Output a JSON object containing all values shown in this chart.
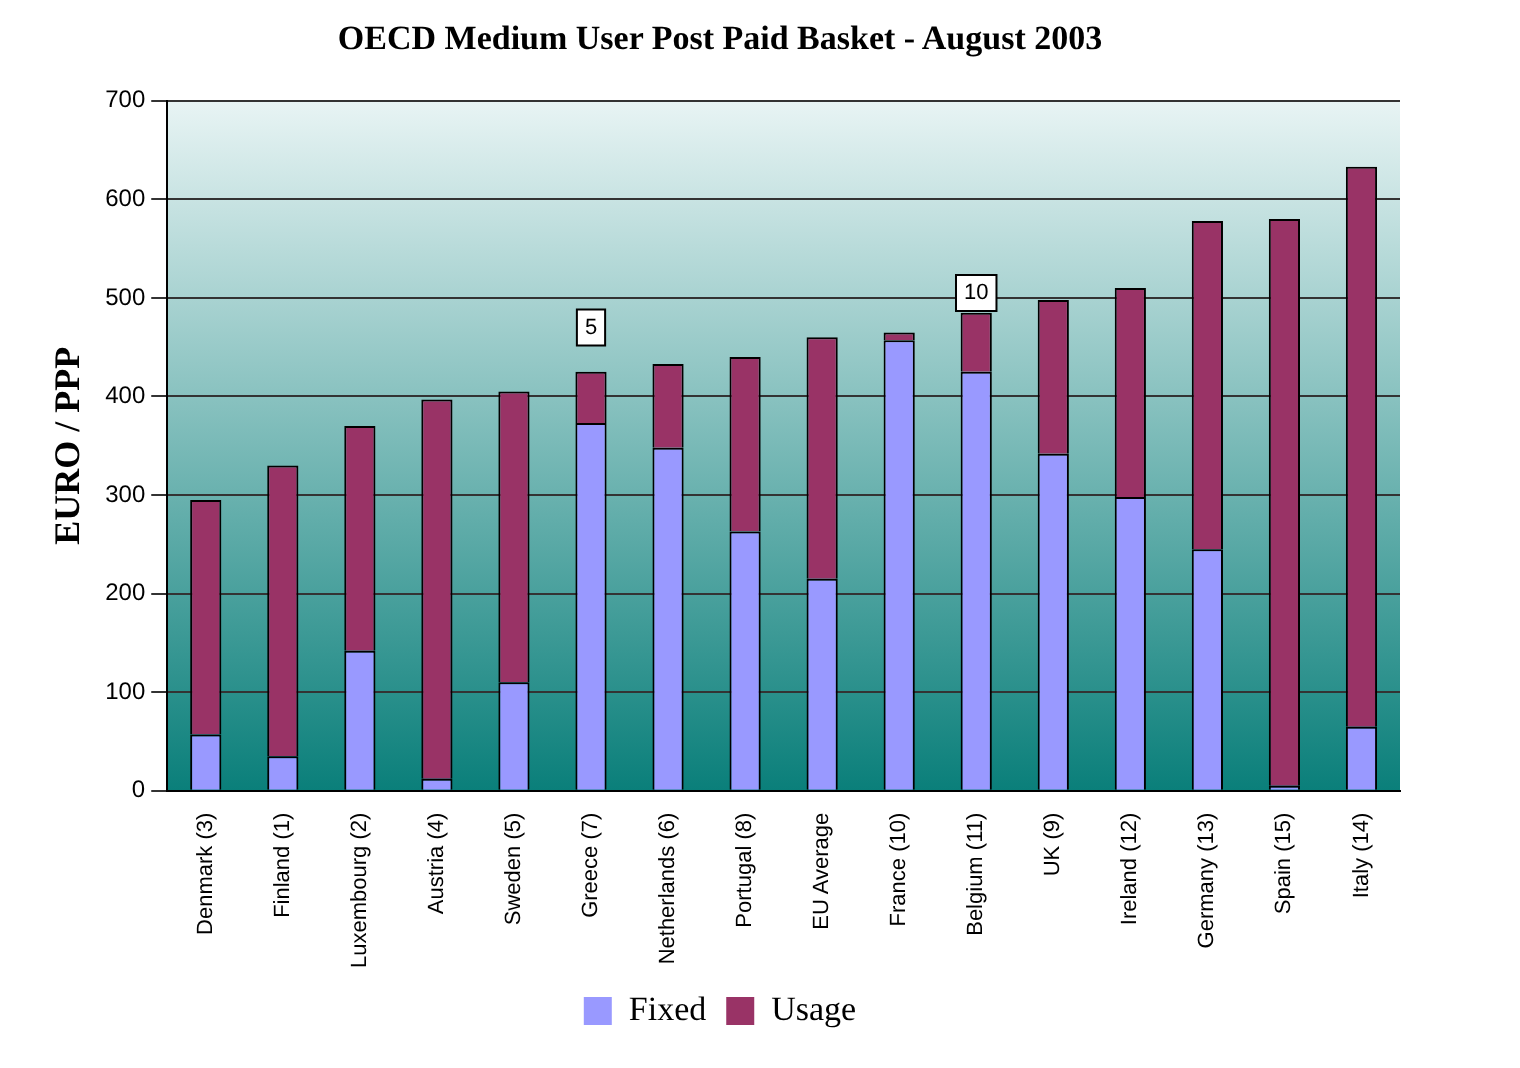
{
  "chart_data": {
    "type": "bar",
    "title": "OECD Medium User Post Paid Basket - August 2003",
    "ylabel": "EURO / PPP",
    "categories": [
      "Denmark (3)",
      "Finland (1)",
      "Luxembourg (2)",
      "Austria (4)",
      "Sweden (5)",
      "Greece (7)",
      "Netherlands (6)",
      "Portugal (8)",
      "EU Average",
      "France (10)",
      "Belgium (11)",
      "UK (9)",
      "Ireland (12)",
      "Germany (13)",
      "Spain (15)",
      "Italy (14)"
    ],
    "series": [
      {
        "name": "Fixed",
        "color": "#9999ff",
        "values": [
          57,
          35,
          142,
          12,
          110,
          373,
          348,
          263,
          215,
          457,
          425,
          342,
          298,
          245,
          5,
          65
        ]
      },
      {
        "name": "Usage",
        "color": "#993366",
        "values": [
          238,
          295,
          228,
          385,
          295,
          52,
          85,
          177,
          245,
          8,
          60,
          156,
          212,
          333,
          575,
          568
        ]
      }
    ],
    "stacked": true,
    "ylim": [
      0,
      700
    ],
    "yticks": [
      0,
      100,
      200,
      300,
      400,
      500,
      600,
      700
    ],
    "grid": "y",
    "legend": "bottom",
    "annotations": [
      {
        "text": "5",
        "x": "Greece (7)",
        "y": 470
      },
      {
        "text": "10",
        "x": "Belgium (11)",
        "y": 505
      }
    ]
  }
}
